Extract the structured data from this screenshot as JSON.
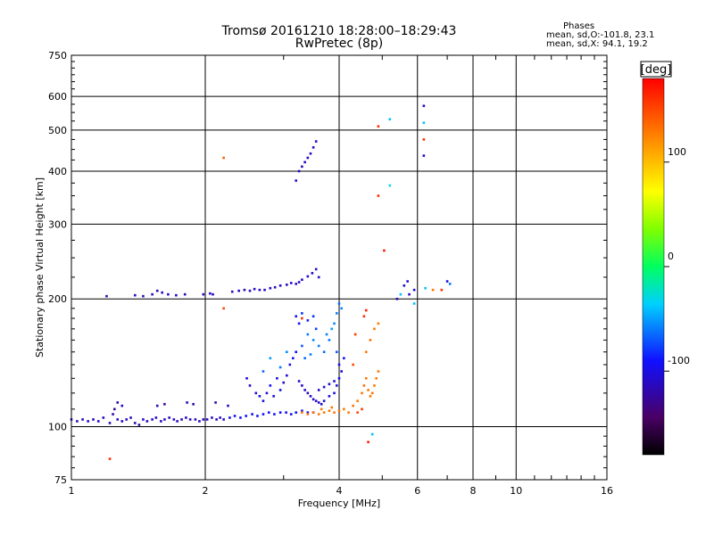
{
  "title_line1": "Tromsø 20161210 18:28:00–18:29:43",
  "title_line2": "RwPretec (8p)",
  "phases_box": {
    "heading": "Phases",
    "line_o": "mean, sd,O:-101.8, 23.1",
    "line_x": "mean, sd,X:  94.1, 19.2"
  },
  "colorbar": {
    "label": "[deg]",
    "ticks": [
      "100",
      "0",
      "-100"
    ],
    "range": [
      -180,
      180
    ]
  },
  "chart_data": {
    "type": "scatter",
    "xlabel": "Frequency [MHz]",
    "ylabel": "Stationary phase Virtual Height [km]",
    "xscale": "log",
    "yscale": "log",
    "xlim": [
      1,
      16
    ],
    "ylim": [
      75,
      750
    ],
    "xticks": [
      1,
      2,
      4,
      6,
      8,
      10,
      16
    ],
    "xtick_labels": [
      "1",
      "2",
      "4",
      "6",
      "8",
      "10",
      "16"
    ],
    "yticks": [
      75,
      100,
      200,
      300,
      400,
      500,
      600,
      750
    ],
    "ytick_labels": [
      "75",
      "100",
      "200",
      "300",
      "400",
      "500",
      "600",
      "750"
    ],
    "grid": true,
    "color_by": "phase_deg",
    "points": [
      [
        1.0,
        104,
        -110
      ],
      [
        1.03,
        103,
        -112
      ],
      [
        1.06,
        104,
        -108
      ],
      [
        1.09,
        103,
        -110
      ],
      [
        1.12,
        104,
        -115
      ],
      [
        1.15,
        103,
        -110
      ],
      [
        1.18,
        105,
        -112
      ],
      [
        1.22,
        102,
        -118
      ],
      [
        1.24,
        107,
        -120
      ],
      [
        1.25,
        110,
        -125
      ],
      [
        1.27,
        104,
        -110
      ],
      [
        1.3,
        103,
        -112
      ],
      [
        1.33,
        104,
        -110
      ],
      [
        1.36,
        105,
        -114
      ],
      [
        1.39,
        102,
        -118
      ],
      [
        1.42,
        101,
        -120
      ],
      [
        1.45,
        104,
        -110
      ],
      [
        1.48,
        103,
        -112
      ],
      [
        1.52,
        104,
        -110
      ],
      [
        1.55,
        105,
        -108
      ],
      [
        1.59,
        103,
        -112
      ],
      [
        1.62,
        104,
        -110
      ],
      [
        1.66,
        105,
        -110
      ],
      [
        1.7,
        104,
        -112
      ],
      [
        1.73,
        103,
        -110
      ],
      [
        1.77,
        104,
        -112
      ],
      [
        1.81,
        105,
        -110
      ],
      [
        1.85,
        104,
        -110
      ],
      [
        1.9,
        104,
        -112
      ],
      [
        1.94,
        103,
        -110
      ],
      [
        1.98,
        104,
        -108
      ],
      [
        2.02,
        104,
        -110
      ],
      [
        2.07,
        105,
        -112
      ],
      [
        2.12,
        104,
        -110
      ],
      [
        2.16,
        105,
        -108
      ],
      [
        2.2,
        104,
        -110
      ],
      [
        2.27,
        105,
        -95
      ],
      [
        2.33,
        106,
        -92
      ],
      [
        2.4,
        105,
        -95
      ],
      [
        2.47,
        106,
        -90
      ],
      [
        2.55,
        107,
        -92
      ],
      [
        2.62,
        106,
        -95
      ],
      [
        2.7,
        107,
        -90
      ],
      [
        2.78,
        108,
        -92
      ],
      [
        2.86,
        107,
        -95
      ],
      [
        2.95,
        108,
        -90
      ],
      [
        3.04,
        108,
        -92
      ],
      [
        3.12,
        107,
        -95
      ],
      [
        3.2,
        108,
        -90
      ],
      [
        3.3,
        109,
        -92
      ],
      [
        3.4,
        108,
        -95
      ],
      [
        3.5,
        108,
        -90
      ],
      [
        1.62,
        113,
        -125
      ],
      [
        1.56,
        112,
        -120
      ],
      [
        1.82,
        114,
        -118
      ],
      [
        1.88,
        113,
        -122
      ],
      [
        2.11,
        114,
        -120
      ],
      [
        2.25,
        112,
        -115
      ],
      [
        1.27,
        114,
        -118
      ],
      [
        1.3,
        112,
        -112
      ],
      [
        1.2,
        203,
        -118
      ],
      [
        1.39,
        204,
        -112
      ],
      [
        1.45,
        203,
        -115
      ],
      [
        1.52,
        205,
        -110
      ],
      [
        1.56,
        209,
        -118
      ],
      [
        1.6,
        207,
        -110
      ],
      [
        1.65,
        205,
        -112
      ],
      [
        1.72,
        204,
        -110
      ],
      [
        1.8,
        205,
        -115
      ],
      [
        1.98,
        205,
        -112
      ],
      [
        2.05,
        206,
        -110
      ],
      [
        2.08,
        205,
        -115
      ],
      [
        2.3,
        208,
        -112
      ],
      [
        2.38,
        209,
        -110
      ],
      [
        2.45,
        210,
        -115
      ],
      [
        2.52,
        209,
        -112
      ],
      [
        2.58,
        211,
        -110
      ],
      [
        2.65,
        210,
        -108
      ],
      [
        2.72,
        210,
        -112
      ],
      [
        2.8,
        212,
        -110
      ],
      [
        2.87,
        213,
        -115
      ],
      [
        2.95,
        215,
        -112
      ],
      [
        3.05,
        216,
        -110
      ],
      [
        3.12,
        218,
        -108
      ],
      [
        3.2,
        217,
        -112
      ],
      [
        3.3,
        222,
        -110
      ],
      [
        3.4,
        226,
        -108
      ],
      [
        3.48,
        230,
        -110
      ],
      [
        3.55,
        235,
        -105
      ],
      [
        3.25,
        219,
        -115
      ],
      [
        3.6,
        225,
        -110
      ],
      [
        2.48,
        130,
        -105
      ],
      [
        2.52,
        125,
        -110
      ],
      [
        2.6,
        120,
        -100
      ],
      [
        2.65,
        118,
        -95
      ],
      [
        2.7,
        115,
        -100
      ],
      [
        2.75,
        120,
        -105
      ],
      [
        2.8,
        125,
        -90
      ],
      [
        2.85,
        118,
        -100
      ],
      [
        2.9,
        130,
        -95
      ],
      [
        2.95,
        122,
        -100
      ],
      [
        3.0,
        127,
        -110
      ],
      [
        3.05,
        132,
        -105
      ],
      [
        3.1,
        140,
        -100
      ],
      [
        3.15,
        145,
        -95
      ],
      [
        3.2,
        150,
        -90
      ],
      [
        3.25,
        128,
        -115
      ],
      [
        3.3,
        125,
        -110
      ],
      [
        3.35,
        122,
        -112
      ],
      [
        3.4,
        120,
        -110
      ],
      [
        3.45,
        118,
        -115
      ],
      [
        3.5,
        116,
        -112
      ],
      [
        3.55,
        115,
        -110
      ],
      [
        3.6,
        114,
        -112
      ],
      [
        3.65,
        113,
        -110
      ],
      [
        3.7,
        115,
        -108
      ],
      [
        3.8,
        118,
        -105
      ],
      [
        3.9,
        120,
        -100
      ],
      [
        3.95,
        125,
        -100
      ],
      [
        4.0,
        130,
        -95
      ],
      [
        4.05,
        135,
        -100
      ],
      [
        3.6,
        122,
        -108
      ],
      [
        3.7,
        124,
        -106
      ],
      [
        3.8,
        126,
        -104
      ],
      [
        3.9,
        128,
        -102
      ],
      [
        4.0,
        140,
        -100
      ],
      [
        4.1,
        145,
        -95
      ],
      [
        3.2,
        182,
        -88
      ],
      [
        3.3,
        185,
        -80
      ],
      [
        3.25,
        175,
        -90
      ],
      [
        3.4,
        178,
        -85
      ],
      [
        3.5,
        182,
        -80
      ],
      [
        3.55,
        170,
        -75
      ],
      [
        3.4,
        165,
        -60
      ],
      [
        3.5,
        160,
        -55
      ],
      [
        3.6,
        155,
        -60
      ],
      [
        3.7,
        150,
        -65
      ],
      [
        3.8,
        160,
        -60
      ],
      [
        3.85,
        170,
        -50
      ],
      [
        3.9,
        175,
        -55
      ],
      [
        3.95,
        185,
        -60
      ],
      [
        4.0,
        195,
        -65
      ],
      [
        4.05,
        190,
        -55
      ],
      [
        3.3,
        155,
        -70
      ],
      [
        3.35,
        145,
        -65
      ],
      [
        3.45,
        148,
        -60
      ],
      [
        3.75,
        165,
        -58
      ],
      [
        3.95,
        150,
        -70
      ],
      [
        2.8,
        145,
        -50
      ],
      [
        2.95,
        138,
        -60
      ],
      [
        3.05,
        150,
        -55
      ],
      [
        2.7,
        135,
        -65
      ],
      [
        3.3,
        108,
        130
      ],
      [
        3.4,
        107,
        130
      ],
      [
        3.5,
        108,
        132
      ],
      [
        3.6,
        107,
        130
      ],
      [
        3.7,
        108,
        128
      ],
      [
        3.8,
        109,
        130
      ],
      [
        3.9,
        108,
        132
      ],
      [
        4.0,
        109,
        130
      ],
      [
        4.1,
        110,
        128
      ],
      [
        4.2,
        108,
        130
      ],
      [
        3.65,
        110,
        128
      ],
      [
        3.85,
        111,
        130
      ],
      [
        4.3,
        112,
        132
      ],
      [
        4.4,
        115,
        128
      ],
      [
        4.5,
        120,
        130
      ],
      [
        4.55,
        125,
        132
      ],
      [
        4.6,
        130,
        130
      ],
      [
        4.65,
        122,
        128
      ],
      [
        4.7,
        118,
        130
      ],
      [
        4.75,
        120,
        132
      ],
      [
        4.8,
        125,
        130
      ],
      [
        4.85,
        130,
        128
      ],
      [
        4.9,
        135,
        130
      ],
      [
        4.6,
        150,
        130
      ],
      [
        4.7,
        160,
        132
      ],
      [
        4.8,
        170,
        130
      ],
      [
        4.9,
        175,
        128
      ],
      [
        4.4,
        108,
        150
      ],
      [
        4.5,
        110,
        155
      ],
      [
        4.3,
        140,
        150
      ],
      [
        4.35,
        165,
        155
      ],
      [
        4.55,
        182,
        160
      ],
      [
        4.65,
        92,
        170
      ],
      [
        4.75,
        96,
        -40
      ],
      [
        4.6,
        188,
        170
      ],
      [
        1.22,
        84,
        160
      ],
      [
        2.2,
        430,
        140
      ],
      [
        2.2,
        190,
        150
      ],
      [
        3.3,
        180,
        160
      ],
      [
        3.25,
        400,
        -110
      ],
      [
        3.3,
        410,
        -112
      ],
      [
        3.35,
        420,
        -110
      ],
      [
        3.4,
        430,
        -105
      ],
      [
        3.45,
        440,
        -110
      ],
      [
        3.5,
        455,
        -112
      ],
      [
        3.55,
        470,
        -110
      ],
      [
        3.2,
        380,
        -108
      ],
      [
        5.05,
        260,
        170
      ],
      [
        4.9,
        350,
        160
      ],
      [
        4.9,
        510,
        160
      ],
      [
        5.2,
        530,
        -40
      ],
      [
        5.2,
        370,
        -30
      ],
      [
        6.2,
        570,
        -110
      ],
      [
        6.2,
        520,
        -40
      ],
      [
        6.2,
        475,
        160
      ],
      [
        6.2,
        435,
        -110
      ],
      [
        5.4,
        200,
        -120
      ],
      [
        5.6,
        215,
        -110
      ],
      [
        5.7,
        220,
        -105
      ],
      [
        5.75,
        205,
        -112
      ],
      [
        5.9,
        210,
        -100
      ],
      [
        5.5,
        205,
        -40
      ],
      [
        6.25,
        212,
        -40
      ],
      [
        6.5,
        210,
        130
      ],
      [
        6.8,
        210,
        160
      ],
      [
        7.0,
        220,
        -100
      ],
      [
        7.1,
        217,
        -60
      ],
      [
        5.9,
        195,
        -40
      ]
    ]
  }
}
